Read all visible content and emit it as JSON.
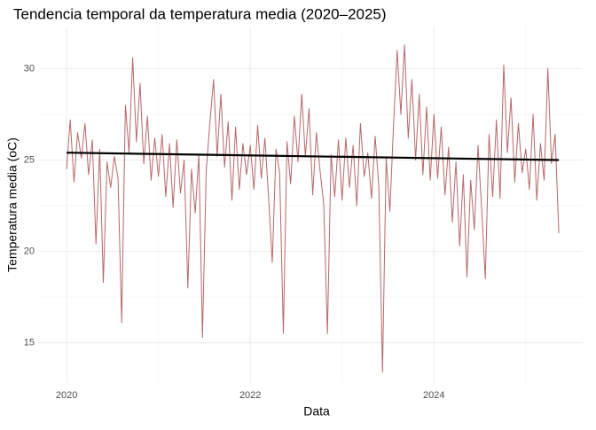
{
  "chart_data": {
    "type": "line",
    "title": "Tendencia temporal da temperatura media (2020–2025)",
    "x_label": "Data",
    "y_label": "Temperatura media (oC)",
    "color": "#b5686a",
    "x": [
      2020,
      2020.04,
      2020.08,
      2020.12,
      2020.16,
      2020.2,
      2020.24,
      2020.28,
      2020.32,
      2020.36,
      2020.4,
      2020.44,
      2020.48,
      2020.52,
      2020.56,
      2020.6,
      2020.64,
      2020.68,
      2020.72,
      2020.76,
      2020.8,
      2020.84,
      2020.88,
      2020.92,
      2020.96,
      2021,
      2021.04,
      2021.08,
      2021.12,
      2021.16,
      2021.2,
      2021.24,
      2021.28,
      2021.32,
      2021.36,
      2021.4,
      2021.44,
      2021.48,
      2021.52,
      2021.56,
      2021.6,
      2021.64,
      2021.68,
      2021.72,
      2021.76,
      2021.8,
      2021.84,
      2021.88,
      2021.92,
      2021.96,
      2022,
      2022.04,
      2022.08,
      2022.12,
      2022.16,
      2022.2,
      2022.24,
      2022.28,
      2022.32,
      2022.36,
      2022.4,
      2022.44,
      2022.48,
      2022.52,
      2022.56,
      2022.6,
      2022.64,
      2022.68,
      2022.72,
      2022.76,
      2022.8,
      2022.84,
      2022.88,
      2022.92,
      2022.96,
      2023,
      2023.04,
      2023.08,
      2023.12,
      2023.16,
      2023.2,
      2023.24,
      2023.28,
      2023.32,
      2023.36,
      2023.4,
      2023.44,
      2023.48,
      2023.52,
      2023.56,
      2023.6,
      2023.64,
      2023.68,
      2023.72,
      2023.76,
      2023.8,
      2023.84,
      2023.88,
      2023.92,
      2023.96,
      2024,
      2024.04,
      2024.08,
      2024.12,
      2024.16,
      2024.2,
      2024.24,
      2024.28,
      2024.32,
      2024.36,
      2024.4,
      2024.44,
      2024.48,
      2024.52,
      2024.56,
      2024.6,
      2024.64,
      2024.68,
      2024.72,
      2024.76,
      2024.8,
      2024.84,
      2024.88,
      2024.92,
      2024.96,
      2025,
      2025.04,
      2025.08,
      2025.12,
      2025.16,
      2025.2,
      2025.24,
      2025.28,
      2025.32,
      2025.36
    ],
    "values": [
      24.5,
      27.2,
      23.8,
      26.5,
      25.1,
      27.0,
      24.2,
      26.1,
      20.4,
      25.6,
      18.3,
      24.9,
      23.5,
      25.2,
      24.0,
      16.1,
      28.0,
      25.4,
      30.6,
      26.0,
      29.2,
      24.8,
      27.4,
      23.9,
      26.2,
      24.1,
      26.4,
      23.0,
      25.9,
      22.4,
      26.1,
      23.2,
      25.0,
      18.0,
      24.5,
      22.1,
      25.3,
      15.3,
      24.4,
      27.0,
      29.4,
      25.2,
      28.6,
      24.6,
      27.1,
      22.8,
      26.8,
      23.4,
      25.9,
      24.2,
      25.8,
      23.4,
      26.9,
      24.0,
      26.2,
      22.9,
      19.4,
      25.6,
      24.3,
      15.5,
      26.0,
      23.7,
      27.4,
      24.9,
      28.6,
      25.2,
      27.8,
      23.1,
      26.5,
      24.4,
      22.6,
      15.5,
      25.3,
      23.0,
      26.1,
      22.8,
      26.2,
      23.5,
      25.8,
      22.5,
      27.0,
      24.1,
      25.4,
      22.9,
      26.3,
      23.6,
      13.4,
      25.1,
      22.2,
      26.9,
      31.0,
      27.5,
      31.3,
      26.2,
      29.4,
      25.0,
      28.6,
      24.2,
      27.9,
      23.9,
      27.5,
      24.0,
      26.8,
      23.1,
      25.7,
      21.6,
      24.9,
      20.3,
      24.2,
      18.6,
      23.9,
      21.2,
      25.8,
      22.3,
      18.5,
      26.4,
      23.0,
      27.2,
      22.9,
      30.2,
      25.4,
      28.4,
      23.8,
      27.0,
      24.3,
      25.6,
      23.4,
      27.5,
      22.8,
      25.9,
      23.9,
      30.0,
      24.8,
      26.4,
      21.0
    ],
    "trend": {
      "x": [
        2020,
        2025.36
      ],
      "values": [
        25.4,
        25.0
      ],
      "color": "#000000"
    },
    "xlim": [
      2019.69,
      2025.62
    ],
    "xticks": [
      2020,
      2022,
      2024
    ],
    "ylim": [
      12.8,
      32.3
    ],
    "yticks": [
      15,
      20,
      25,
      30
    ],
    "grid": true
  }
}
